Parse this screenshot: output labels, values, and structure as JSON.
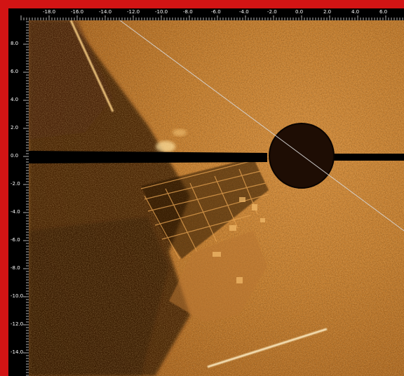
{
  "sonar": {
    "x_axis_labels": [
      "-18.0",
      "-16.0",
      "-14.0",
      "-12.0",
      "-10.0",
      "-8.0",
      "-6.0",
      "-4.0",
      "-2.0",
      "0.0",
      "2.0",
      "4.0",
      "6.0"
    ],
    "y_axis_labels": [
      "8.0",
      "6.0",
      "4.0",
      "2.0",
      "0.0",
      "-2.0",
      "-4.0",
      "-6.0",
      "-8.0",
      "-10.0",
      "-12.0",
      "-14.0"
    ],
    "colors": {
      "frame": "#d21414",
      "ruler_background": "#000000",
      "ruler_text": "#ffffff",
      "sonar_bright": "#e8a040",
      "sonar_mid": "#b86a1e",
      "sonar_dark": "#3a1a06",
      "sweep_line": "#d8d8d8"
    }
  }
}
